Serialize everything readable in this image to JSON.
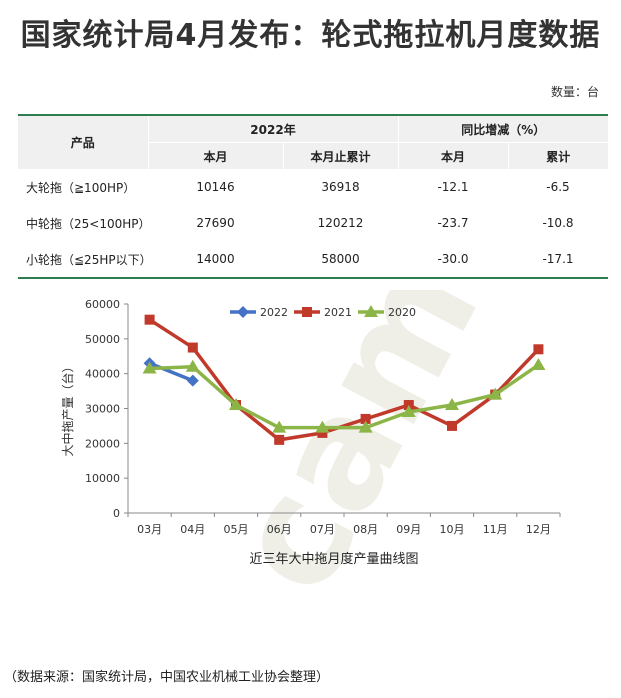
{
  "title": "国家统计局4月发布：轮式拖拉机月度数据",
  "unit": "数量：台",
  "table": {
    "col_product": "产品",
    "col_2022": "2022年",
    "col_yoy": "同比增减（%）",
    "sub_month": "本月",
    "sub_cum": "本月止累计",
    "sub_month2": "本月",
    "sub_cum2": "累计",
    "rows": [
      {
        "product": "大轮拖（≧100HP）",
        "month": "10146",
        "cum": "36918",
        "yoy_month": "-12.1",
        "yoy_cum": "-6.5"
      },
      {
        "product": "中轮拖（25<100HP）",
        "month": "27690",
        "cum": "120212",
        "yoy_month": "-23.7",
        "yoy_cum": "-10.8"
      },
      {
        "product": "小轮拖（≦25HP以下）",
        "month": "14000",
        "cum": "58000",
        "yoy_month": "-30.0",
        "yoy_cum": "-17.1"
      }
    ]
  },
  "chart_data": {
    "type": "line",
    "title": "近三年大中拖月度产量曲线图",
    "ylabel": "大中拖产量（台）",
    "xlabel": "",
    "categories": [
      "03月",
      "04月",
      "05月",
      "06月",
      "07月",
      "08月",
      "09月",
      "10月",
      "11月",
      "12月"
    ],
    "ylim": [
      0,
      60000
    ],
    "yticks": [
      0,
      10000,
      20000,
      30000,
      40000,
      50000,
      60000
    ],
    "legend_position": "top",
    "grid": false,
    "series": [
      {
        "name": "2022",
        "color": "#4472c4",
        "marker": "diamond",
        "values": [
          43000,
          38000,
          null,
          null,
          null,
          null,
          null,
          null,
          null,
          null
        ]
      },
      {
        "name": "2021",
        "color": "#c0392b",
        "marker": "square",
        "values": [
          55500,
          47500,
          31000,
          21000,
          23000,
          27000,
          31000,
          25000,
          34000,
          47000
        ]
      },
      {
        "name": "2020",
        "color": "#8cb548",
        "marker": "triangle",
        "values": [
          41500,
          42000,
          31000,
          24500,
          24500,
          24500,
          29000,
          31000,
          34000,
          42500
        ]
      }
    ]
  },
  "watermark": "cam",
  "footer": "（数据来源：国家统计局，中国农业机械工业协会整理）"
}
